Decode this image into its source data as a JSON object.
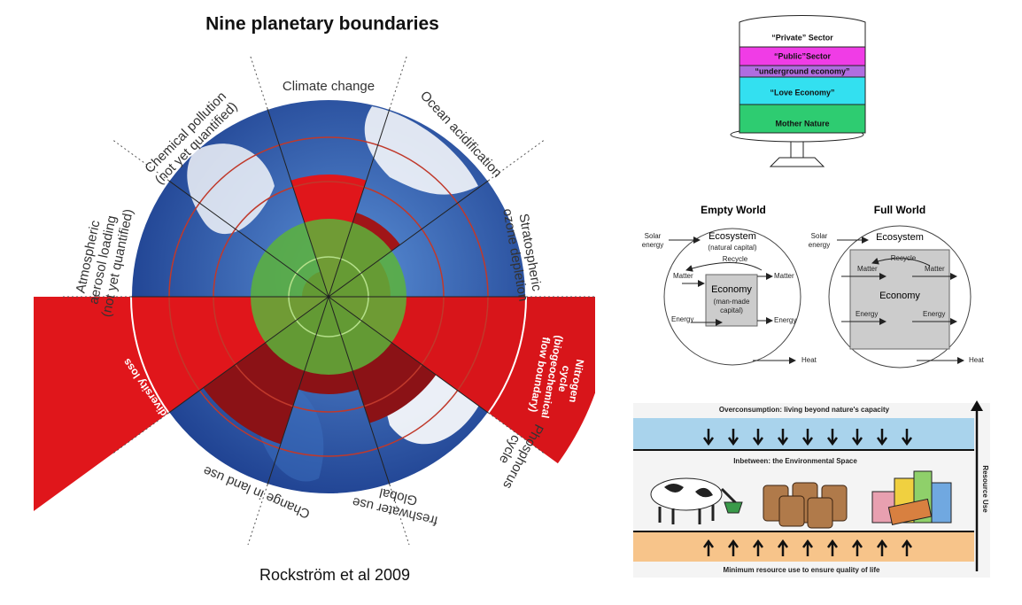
{
  "planetary": {
    "title": "Nine planetary boundaries",
    "segments": [
      {
        "lines": [
          "Climate change"
        ]
      },
      {
        "lines": [
          "Ocean acidification"
        ]
      },
      {
        "lines": [
          "Stratospheric",
          "ozone depletion"
        ]
      },
      {
        "lines": [
          "Nitrogen",
          "cycle",
          "(biogeochemical",
          "flow boundary)"
        ]
      },
      {
        "lines": [
          "Phosphorus",
          "cycle"
        ]
      },
      {
        "lines": [
          "Global",
          "freshwater use"
        ]
      },
      {
        "lines": [
          "Change in land use"
        ]
      },
      {
        "lines": [
          "Biodiversity loss"
        ]
      },
      {
        "lines": [
          "Atmospheric",
          "aerosol loading",
          "(not yet quantified)"
        ]
      },
      {
        "lines": [
          "Chemical pollution",
          "(not yet quantified)"
        ]
      }
    ],
    "source": "Rockström et al 2009"
  },
  "cake": {
    "layers": [
      "“Private” Sector",
      "“Public”Sector",
      "“underground economy”",
      "“Love Economy”",
      "Mother Nature"
    ]
  },
  "worlds": {
    "empty": {
      "title": "Empty World",
      "solar": [
        "Solar",
        "energy"
      ],
      "ecosystem": "Ecosystem",
      "natural_capital": "(natural capital)",
      "recycle": "Recycle",
      "matter_in": "Matter",
      "matter_out": "Matter",
      "economy": "Economy",
      "man_made_capital": [
        "(man-made",
        "capital)"
      ],
      "energy_in": "Energy",
      "energy_out": "Energy",
      "heat": "Heat"
    },
    "full": {
      "title": "Full World",
      "solar": [
        "Solar",
        "energy"
      ],
      "ecosystem": "Ecosystem",
      "recycle": "Recycle",
      "matter_in": "Matter",
      "matter_out": "Matter",
      "economy": "Economy",
      "energy_in": "Energy",
      "energy_out": "Energy",
      "heat": "Heat"
    }
  },
  "resource_use": {
    "overconsumption": "Overconsumption: living beyond nature's capacity",
    "inbetween": "Inbetween: the Environmental Space",
    "minimum": "Minimum resource use to ensure quality of life",
    "axis_label": "Resource Use"
  }
}
